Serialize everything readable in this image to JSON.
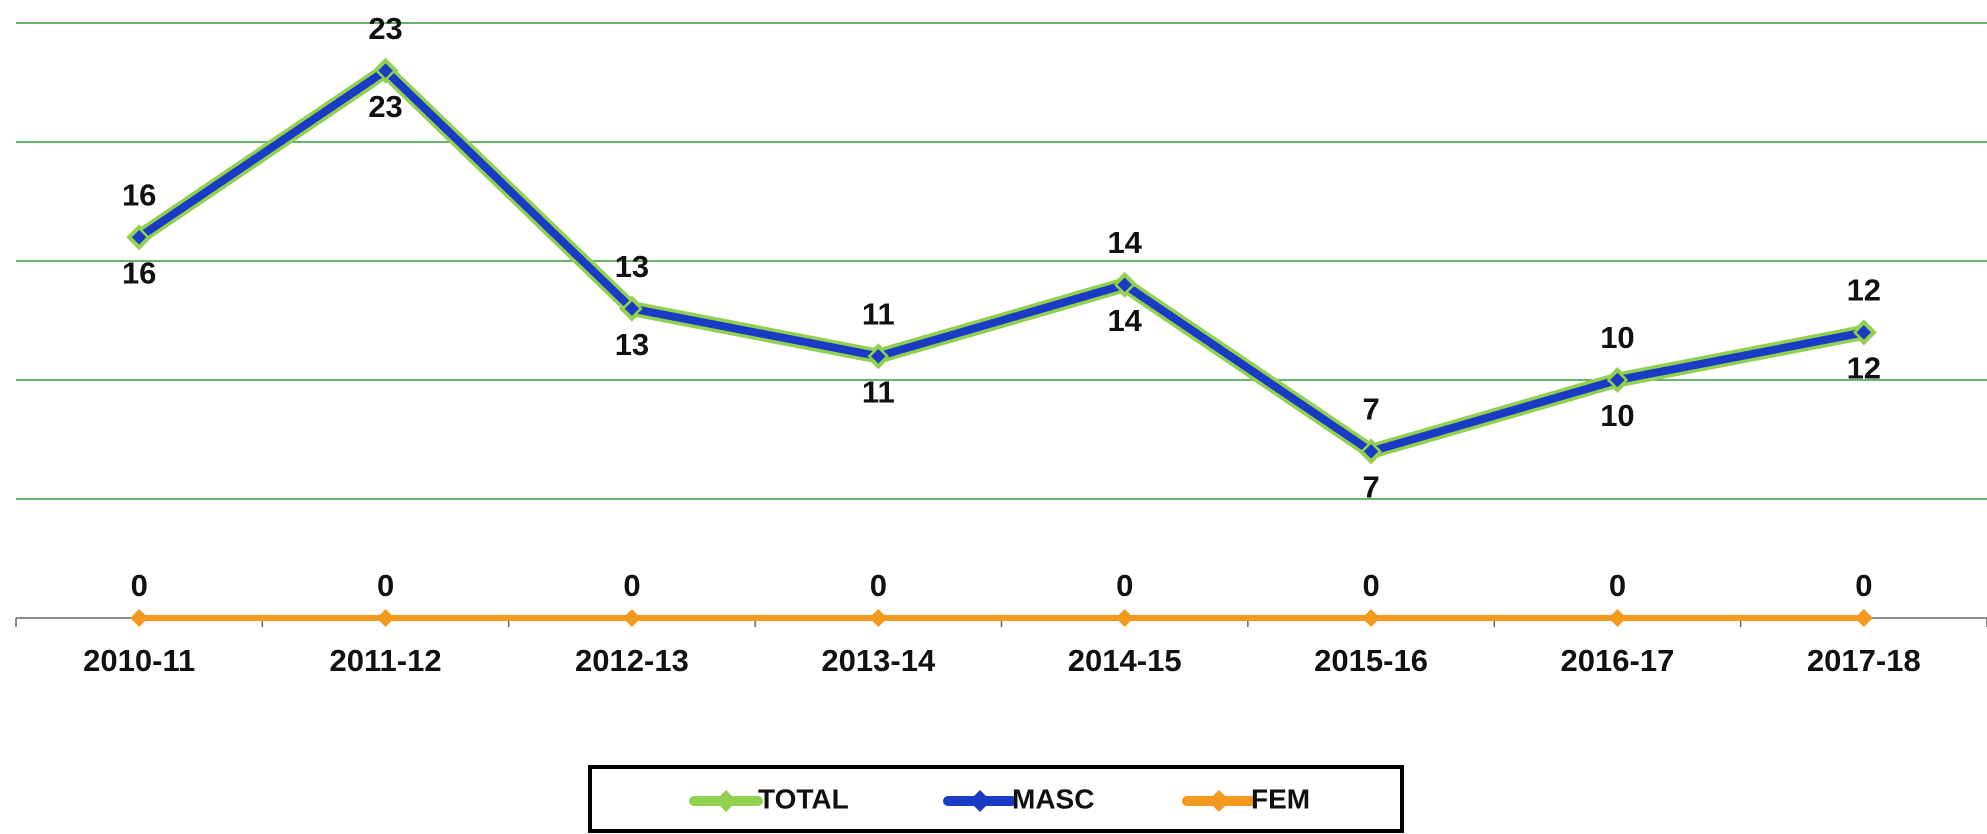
{
  "chart_data": {
    "type": "line",
    "categories": [
      "2010-11",
      "2011-12",
      "2012-13",
      "2013-14",
      "2014-15",
      "2015-16",
      "2016-17",
      "2017-18"
    ],
    "series": [
      {
        "name": "TOTAL",
        "color": "#92d050",
        "values": [
          16,
          23,
          13,
          11,
          14,
          7,
          10,
          12
        ]
      },
      {
        "name": "MASC",
        "color": "#1a3cc4",
        "values": [
          16,
          23,
          13,
          11,
          14,
          7,
          10,
          12
        ]
      },
      {
        "name": "FEM",
        "color": "#f39a1e",
        "values": [
          0,
          0,
          0,
          0,
          0,
          0,
          0,
          0
        ]
      }
    ],
    "ylim": [
      0,
      25
    ],
    "yticks": [
      0,
      5,
      10,
      15,
      20,
      25
    ],
    "grid": true,
    "legend": "bottom"
  }
}
